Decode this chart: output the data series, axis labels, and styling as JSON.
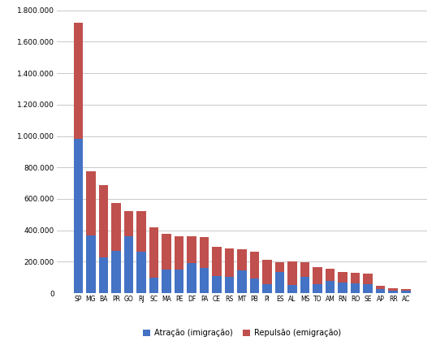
{
  "states": [
    "SP",
    "MG",
    "BA",
    "PR",
    "GO",
    "RJ",
    "SC",
    "MA",
    "PE",
    "DF",
    "PA",
    "CE",
    "RS",
    "MT",
    "PB",
    "PI",
    "ES",
    "AL",
    "MS",
    "TO",
    "AM",
    "RN",
    "RO",
    "SE",
    "AP",
    "RR",
    "AC"
  ],
  "atracao": [
    980000,
    370000,
    230000,
    270000,
    360000,
    265000,
    100000,
    150000,
    150000,
    190000,
    160000,
    110000,
    105000,
    145000,
    95000,
    60000,
    135000,
    55000,
    105000,
    60000,
    80000,
    70000,
    65000,
    60000,
    25000,
    18000,
    15000
  ],
  "repulsao": [
    740000,
    405000,
    460000,
    305000,
    165000,
    255000,
    320000,
    230000,
    215000,
    170000,
    195000,
    185000,
    180000,
    135000,
    170000,
    155000,
    60000,
    145000,
    90000,
    105000,
    75000,
    65000,
    65000,
    65000,
    20000,
    15000,
    14000
  ],
  "atracao_color": "#4472C4",
  "repulsao_color": "#C0504D",
  "legend_atracao": "Atração (imigração)",
  "legend_repulsao": "Repulsão (emigração)",
  "ylim": [
    0,
    1800000
  ],
  "yticks": [
    0,
    200000,
    400000,
    600000,
    800000,
    1000000,
    1200000,
    1400000,
    1600000,
    1800000
  ],
  "background_color": "#FFFFFF",
  "grid_color": "#C0C0C0"
}
